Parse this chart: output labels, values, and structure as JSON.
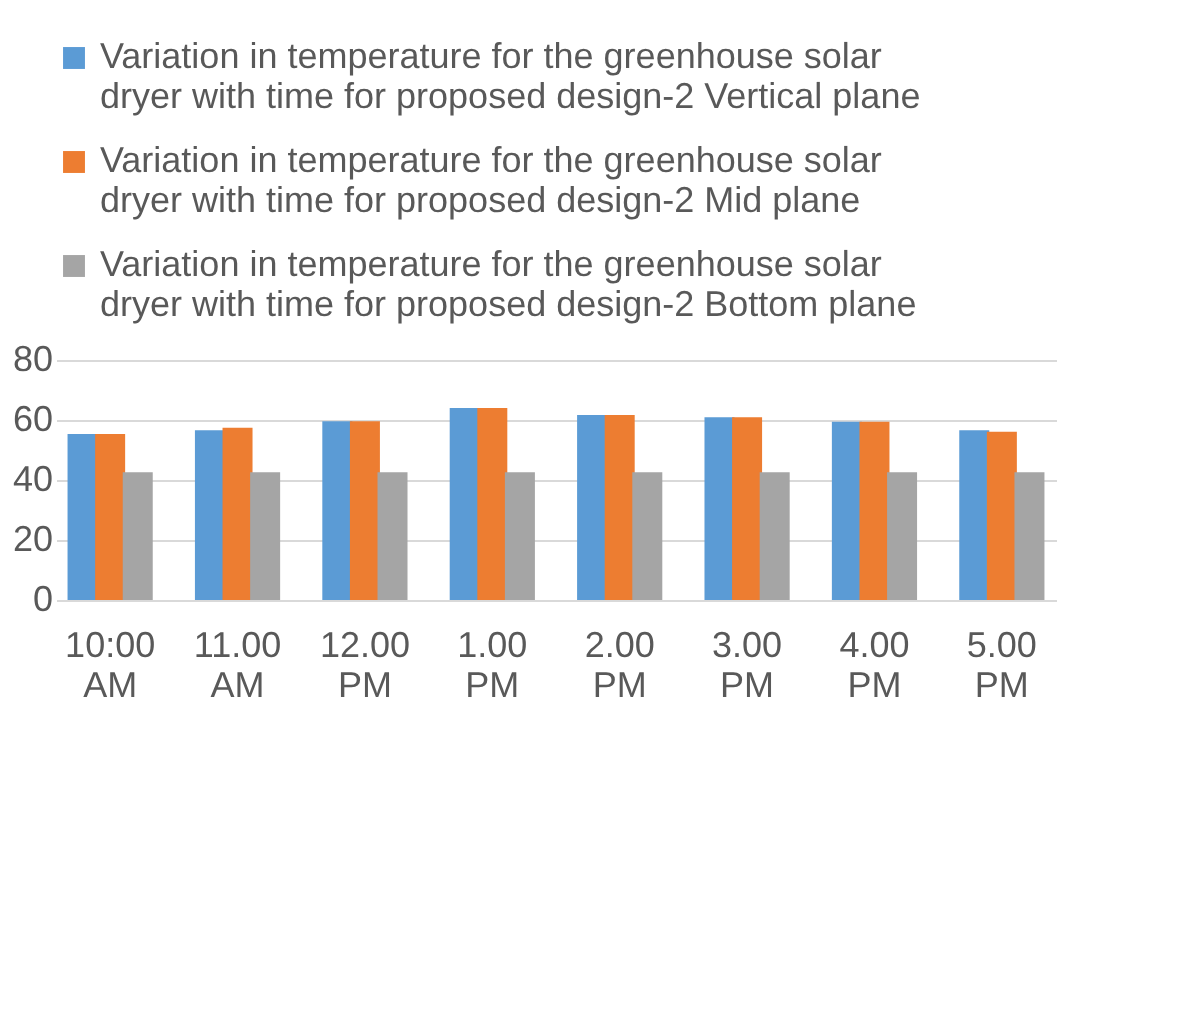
{
  "chart_data": {
    "type": "bar",
    "categories": [
      "10:00 AM",
      "11.00 AM",
      "12.00 PM",
      "1.00 PM",
      "2.00 PM",
      "3.00 PM",
      "4.00 PM",
      "5.00 PM"
    ],
    "series": [
      {
        "name": "Variation in temperature for the greenhouse solar dryer with time for proposed design-2 Vertical plane",
        "color": "#5b9bd5",
        "values": [
          55.3,
          56.6,
          59.6,
          64,
          61.7,
          60.9,
          59.4,
          56.6
        ]
      },
      {
        "name": "Variation in temperature for the greenhouse solar dryer with time for proposed design-2 Mid plane",
        "color": "#ed7d31",
        "values": [
          55.3,
          57.4,
          59.6,
          64,
          61.7,
          60.9,
          59.4,
          56.1
        ]
      },
      {
        "name": "Variation in temperature for the greenhouse solar dryer with time for proposed design-2 Bottom plane",
        "color": "#a5a5a5",
        "values": [
          42.6,
          42.6,
          42.6,
          42.6,
          42.6,
          42.6,
          42.6,
          42.6
        ]
      }
    ],
    "ylim": [
      0,
      80
    ],
    "yticks": [
      0,
      20,
      40,
      60,
      80
    ],
    "grid": "y",
    "legend": "top"
  }
}
